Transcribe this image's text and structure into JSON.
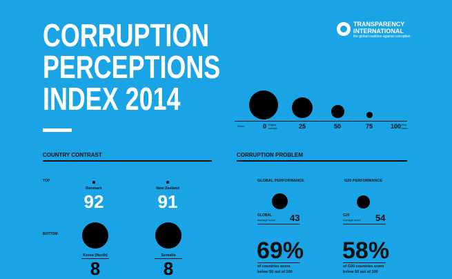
{
  "title": {
    "line1": "CORRUPTION",
    "line2": "PERCEPTIONS",
    "line3": "INDEX 2014"
  },
  "logo": {
    "name_line1": "TRANSPARENCY",
    "name_line2": "INTERNATIONAL",
    "tagline": "the global coalition against corruption"
  },
  "scale": {
    "label": "Score",
    "ticks": [
      "0",
      "25",
      "50",
      "75",
      "100"
    ],
    "low_note": "Highly corrupt",
    "high_note": "Very clean"
  },
  "country_contrast": {
    "heading": "COUNTRY CONTRAST",
    "top_label": "TOP",
    "bottom_label": "BOTTOM",
    "top": [
      {
        "country": "Denmark",
        "score": "92"
      },
      {
        "country": "New Zealand",
        "score": "91"
      }
    ],
    "bottom": [
      {
        "country": "Korea (North)",
        "score": "8"
      },
      {
        "country": "Somalia",
        "score": "8"
      }
    ]
  },
  "corruption_problem": {
    "heading": "CORRUPTION PROBLEM",
    "global": {
      "head": "GLOBAL PERFORMANCE",
      "label": "GLOBAL",
      "sub": "Average score",
      "score": "43",
      "pct": "69%",
      "pct_line1": "of countries score",
      "pct_line2": "below 50 out of 100"
    },
    "g20": {
      "head": "G20 PERFORMANCE",
      "label": "G20",
      "sub": "Average score",
      "score": "54",
      "pct": "58%",
      "pct_line1": "of G20 countries score",
      "pct_line2": "below 50 out of 100"
    }
  }
}
